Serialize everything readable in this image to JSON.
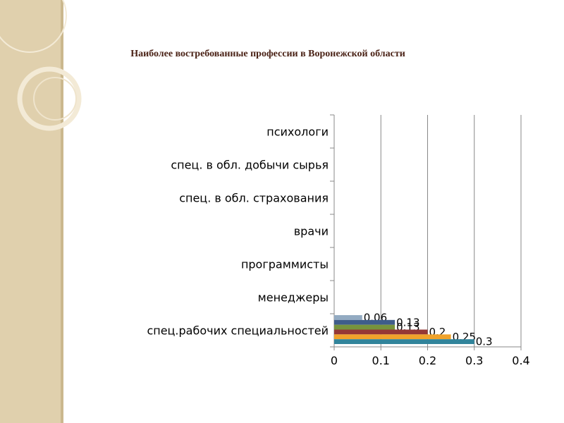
{
  "chart_data": {
    "type": "bar",
    "orientation": "horizontal",
    "title": "Наиболее востребованные профессии в Воронежской области",
    "categories": [
      "спец.рабочих специальностей",
      "менеджеры",
      "программисты",
      "врачи",
      "спец. в обл. страхования",
      "спец. в обл. добычи сырья",
      "психологи"
    ],
    "series": [
      {
        "color": "#93abc2",
        "values": [
          0.06,
          null,
          null,
          null,
          null,
          null,
          null
        ]
      },
      {
        "color": "#3f5d8a",
        "values": [
          0.13,
          null,
          null,
          null,
          null,
          null,
          null
        ]
      },
      {
        "color": "#77933c",
        "values": [
          0.13,
          null,
          null,
          null,
          null,
          null,
          null
        ]
      },
      {
        "color": "#953735",
        "values": [
          0.2,
          null,
          null,
          null,
          null,
          null,
          null
        ]
      },
      {
        "color": "#f0a22b",
        "values": [
          0.25,
          null,
          null,
          null,
          null,
          null,
          null
        ]
      },
      {
        "color": "#31849b",
        "values": [
          0.3,
          null,
          null,
          null,
          null,
          null,
          null
        ]
      }
    ],
    "xlim": [
      0,
      0.4
    ],
    "xticks": [
      0,
      0.1,
      0.2,
      0.3,
      0.4
    ],
    "grid": true
  }
}
